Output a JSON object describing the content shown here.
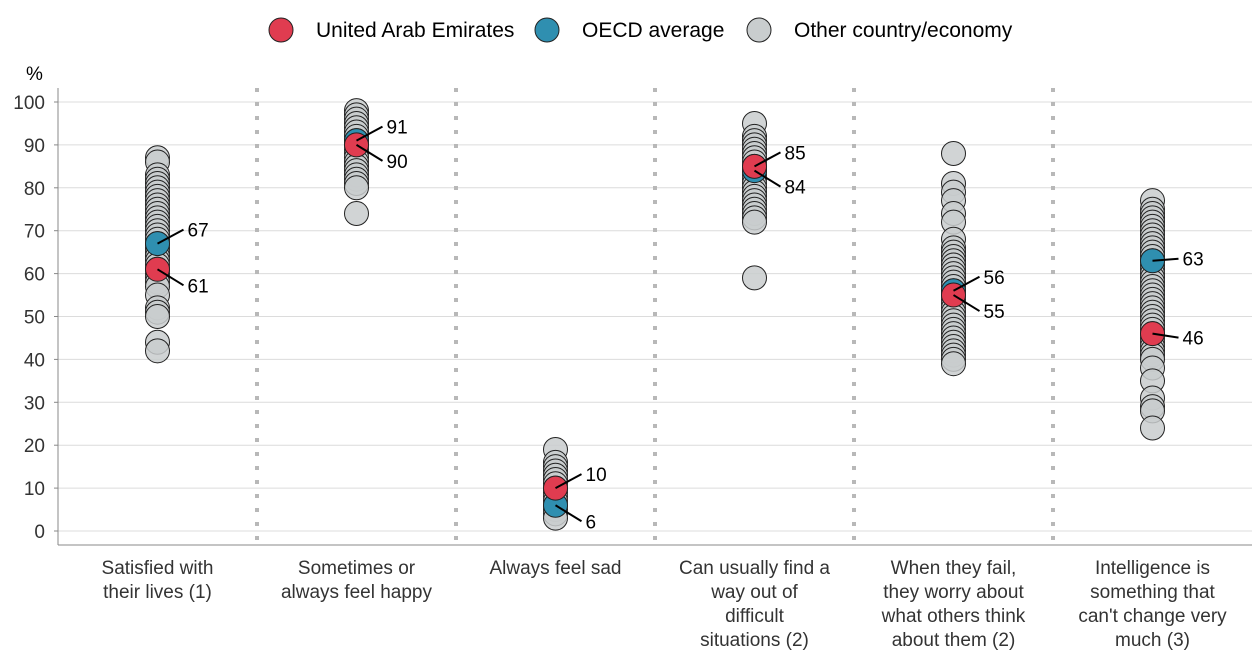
{
  "chart_data": {
    "type": "scatter",
    "y_unit": "%",
    "ylim": [
      0,
      100
    ],
    "yticks": [
      0,
      10,
      20,
      30,
      40,
      50,
      60,
      70,
      80,
      90,
      100
    ],
    "grid": true,
    "legend_position": "top",
    "legend": [
      {
        "name": "United Arab Emirates",
        "color": "#e03c50"
      },
      {
        "name": "OECD average",
        "color": "#2f8fb0"
      },
      {
        "name": "Other country/economy",
        "color": "#c9cdce"
      }
    ],
    "categories": [
      {
        "label": [
          "Satisfied with",
          "their lives (1)"
        ],
        "uae": 61,
        "oecd": 67,
        "others": [
          87,
          86,
          83,
          82,
          81,
          80,
          79,
          78,
          77,
          76,
          75,
          74,
          73,
          72,
          71,
          70,
          69,
          68,
          67,
          66,
          65,
          64,
          63,
          62,
          61,
          60,
          59,
          58,
          57,
          55,
          52,
          51,
          50,
          44,
          42
        ]
      },
      {
        "label": [
          "Sometimes or",
          "always feel happy"
        ],
        "uae": 90,
        "oecd": 91,
        "others": [
          98,
          97,
          96,
          95,
          94,
          93,
          92,
          91,
          90,
          89,
          88,
          87,
          86,
          85,
          84,
          83,
          82,
          81,
          80,
          74
        ]
      },
      {
        "label": [
          "Always feel sad"
        ],
        "uae": 10,
        "oecd": 6,
        "others": [
          19,
          16,
          15,
          14,
          13,
          12,
          11,
          10,
          9,
          8,
          7,
          6,
          5,
          4,
          3
        ]
      },
      {
        "label": [
          "Can usually find a",
          "way out of",
          "difficult",
          "situations (2)"
        ],
        "uae": 85,
        "oecd": 84,
        "others": [
          95,
          92,
          91,
          90,
          89,
          88,
          87,
          86,
          85,
          84,
          83,
          82,
          81,
          80,
          79,
          78,
          77,
          76,
          75,
          74,
          73,
          72,
          59
        ]
      },
      {
        "label": [
          "When they fail,",
          "they worry about",
          "what others think",
          "about them (2)"
        ],
        "uae": 55,
        "oecd": 56,
        "others": [
          88,
          81,
          79,
          77,
          74,
          72,
          68,
          66,
          65,
          64,
          63,
          62,
          61,
          60,
          59,
          58,
          57,
          56,
          55,
          54,
          53,
          52,
          51,
          50,
          49,
          48,
          47,
          46,
          45,
          44,
          43,
          42,
          41,
          40,
          39
        ]
      },
      {
        "label": [
          "Intelligence is",
          "something that",
          "can't change very",
          "much (3)"
        ],
        "uae": 46,
        "oecd": 63,
        "others": [
          77,
          75,
          74,
          73,
          72,
          71,
          70,
          69,
          68,
          67,
          66,
          65,
          64,
          63,
          62,
          61,
          60,
          59,
          58,
          57,
          56,
          55,
          54,
          53,
          52,
          51,
          50,
          49,
          48,
          47,
          46,
          45,
          44,
          43,
          42,
          41,
          40,
          38,
          35,
          31,
          29,
          28,
          24
        ]
      }
    ],
    "data_labels": {
      "uae_text": [
        "61",
        "90",
        "10",
        "85",
        "55",
        "46"
      ],
      "oecd_text": [
        "67",
        "91",
        "6",
        "84",
        "56",
        "63"
      ]
    }
  }
}
